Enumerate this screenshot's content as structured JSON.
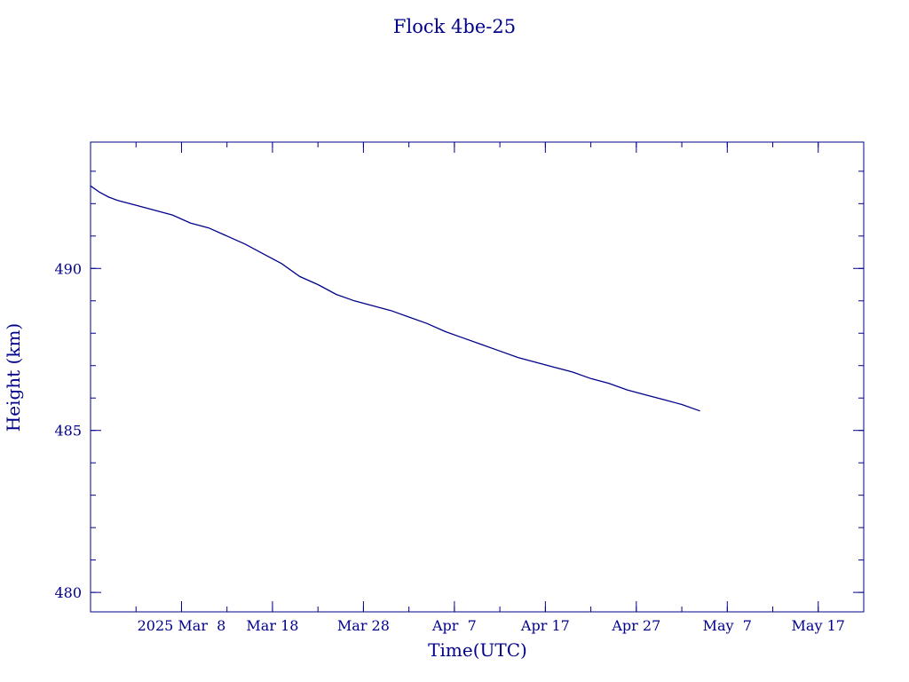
{
  "chart_data": {
    "type": "line",
    "title": "Flock 4be-25",
    "xlabel": "Time(UTC)",
    "ylabel": "Height (km)",
    "x_ticks": [
      "2025 Mar  8",
      "Mar 18",
      "Mar 28",
      "Apr  7",
      "Apr 17",
      "Apr 27",
      "May  7",
      "May 17"
    ],
    "x_tick_dates": [
      "2025-03-08",
      "2025-03-18",
      "2025-03-28",
      "2025-04-07",
      "2025-04-17",
      "2025-04-27",
      "2025-05-07",
      "2025-05-17"
    ],
    "y_ticks": [
      "480",
      "485",
      "490"
    ],
    "xlim": [
      "2025-02-26",
      "2025-05-22"
    ],
    "ylim": [
      479.4,
      493.9
    ],
    "grid": false,
    "color": "#00008b",
    "series": [
      {
        "x": [
          "2025-02-26",
          "2025-02-27",
          "2025-02-28",
          "2025-03-01",
          "2025-03-03",
          "2025-03-05",
          "2025-03-07",
          "2025-03-09",
          "2025-03-11",
          "2025-03-13",
          "2025-03-15",
          "2025-03-17",
          "2025-03-19",
          "2025-03-21",
          "2025-03-23",
          "2025-03-25",
          "2025-03-27",
          "2025-03-29",
          "2025-03-31",
          "2025-04-02",
          "2025-04-04",
          "2025-04-06",
          "2025-04-08",
          "2025-04-10",
          "2025-04-12",
          "2025-04-14",
          "2025-04-16",
          "2025-04-18",
          "2025-04-20",
          "2025-04-22",
          "2025-04-24",
          "2025-04-26",
          "2025-04-28",
          "2025-04-30",
          "2025-05-02",
          "2025-05-04"
        ],
        "y": [
          492.55,
          492.35,
          492.2,
          492.1,
          491.95,
          491.8,
          491.65,
          491.4,
          491.25,
          491.0,
          490.75,
          490.45,
          490.15,
          489.75,
          489.5,
          489.2,
          489.0,
          488.85,
          488.7,
          488.5,
          488.3,
          488.05,
          487.85,
          487.65,
          487.45,
          487.25,
          487.1,
          486.95,
          486.8,
          486.6,
          486.45,
          486.25,
          486.1,
          485.95,
          485.8,
          485.6
        ]
      }
    ]
  }
}
